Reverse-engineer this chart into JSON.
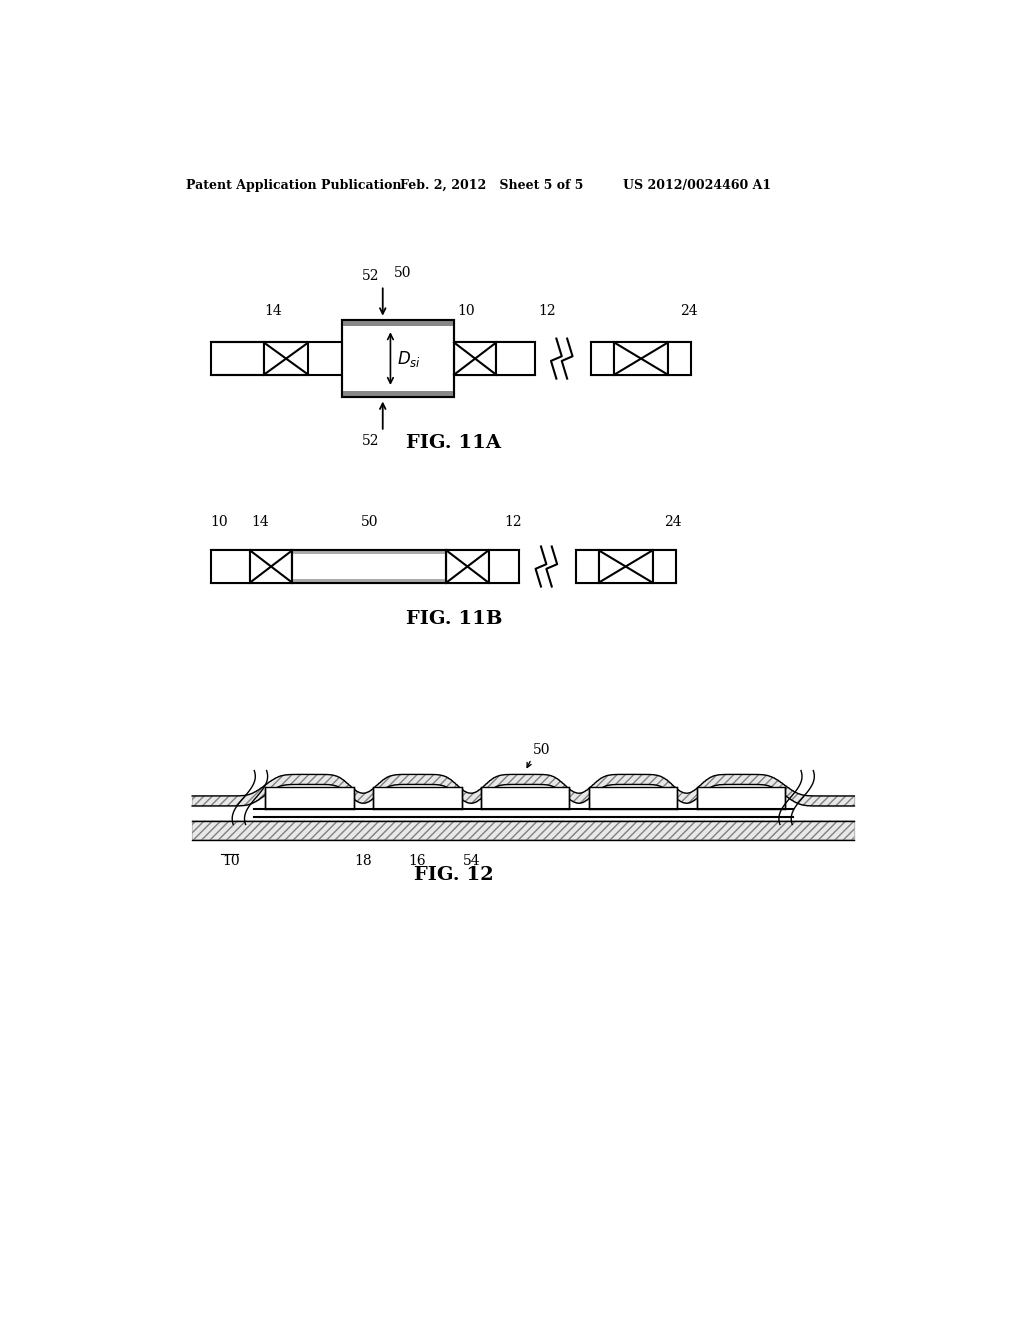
{
  "bg_color": "#ffffff",
  "line_color": "#000000",
  "header_left": "Patent Application Publication",
  "header_mid": "Feb. 2, 2012   Sheet 5 of 5",
  "header_right": "US 2012/0024460 A1",
  "fig11a_caption": "FIG. 11A",
  "fig11b_caption": "FIG. 11B",
  "fig12_caption": "FIG. 12"
}
